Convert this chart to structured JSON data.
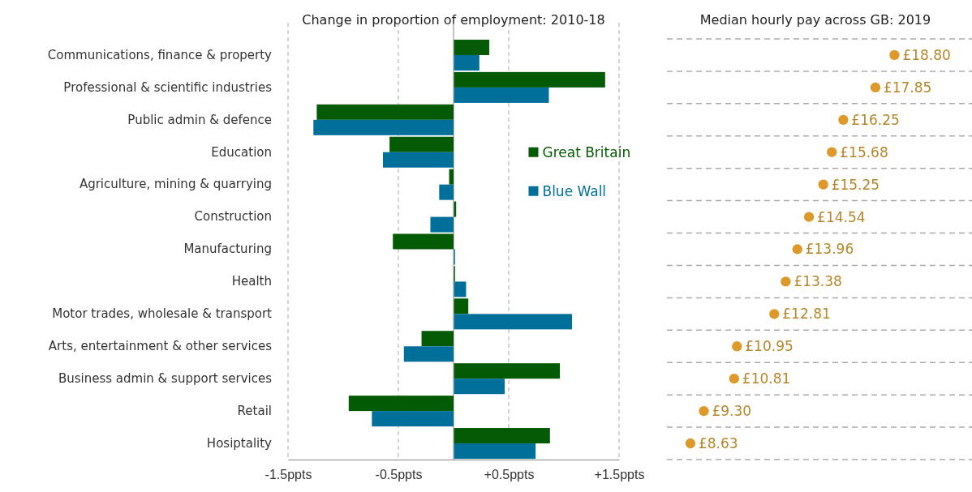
{
  "chart_data": [
    {
      "type": "bar",
      "orientation": "horizontal",
      "title": "Change in proportion of employment: 2010-18",
      "categories": [
        "Communications, finance & property",
        "Professional & scientific industries",
        "Public admin & defence",
        "Education",
        "Agriculture, mining & quarrying",
        "Construction",
        "Manufacturing",
        "Health",
        "Motor trades, wholesale & transport",
        "Arts, entertainment & other services",
        "Business admin & support services",
        "Retail",
        "Hosiptality"
      ],
      "series": [
        {
          "name": "Great Britain",
          "color": "#055a05",
          "values": [
            0.32,
            1.37,
            -1.24,
            -0.58,
            -0.04,
            0.02,
            -0.55,
            0.01,
            0.13,
            -0.29,
            0.96,
            -0.95,
            0.87
          ]
        },
        {
          "name": "Blue Wall",
          "color": "#00709a",
          "values": [
            0.23,
            0.86,
            -1.27,
            -0.64,
            -0.13,
            -0.21,
            0.01,
            0.11,
            1.07,
            -0.45,
            0.46,
            -0.74,
            0.74
          ]
        }
      ],
      "xlim": [
        -1.5,
        1.5
      ],
      "xticks": [
        {
          "value": -1.5,
          "label": "-1.5ppts"
        },
        {
          "value": -0.5,
          "label": "-0.5ppts"
        },
        {
          "value": 0.5,
          "label": "+0.5ppts"
        },
        {
          "value": 1.5,
          "label": "+1.5ppts"
        }
      ],
      "grid": "x",
      "legend": "right"
    },
    {
      "type": "scatter",
      "orientation": "horizontal",
      "title": "Median hourly pay across GB: 2019",
      "categories": [
        null,
        null,
        null,
        null,
        null,
        null,
        null,
        null,
        null,
        null,
        null,
        null,
        null
      ],
      "values": [
        18.8,
        17.85,
        16.25,
        15.68,
        15.25,
        14.54,
        13.96,
        13.38,
        12.81,
        10.95,
        10.81,
        9.3,
        8.63
      ],
      "value_labels": [
        "£18.80",
        "£17.85",
        "£16.25",
        "£15.68",
        "£15.25",
        "£14.54",
        "£13.96",
        "£13.38",
        "£12.81",
        "£10.95",
        "£10.81",
        "£9.30",
        "£8.63"
      ],
      "color": "#dd9a2b",
      "marker": "circle"
    }
  ]
}
